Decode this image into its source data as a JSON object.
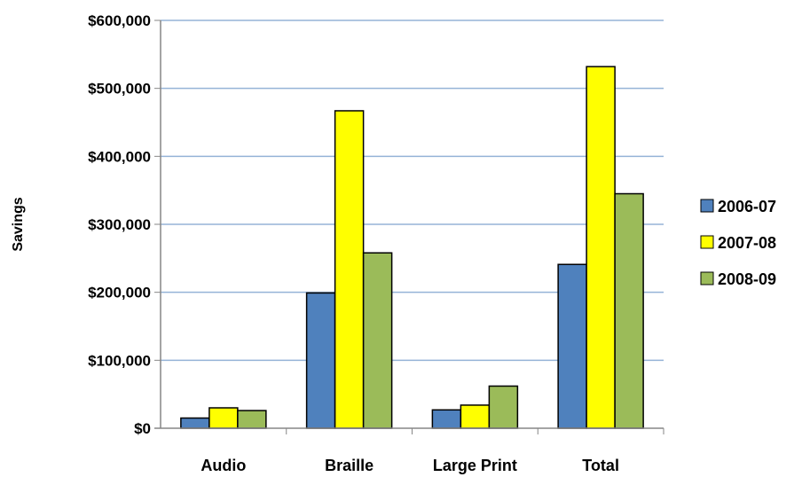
{
  "chart_data": {
    "type": "bar",
    "title": "",
    "xlabel": "",
    "ylabel": "Savings",
    "ylim": [
      0,
      600000
    ],
    "yticks": [
      0,
      100000,
      200000,
      300000,
      400000,
      500000,
      600000
    ],
    "ytick_labels": [
      "$0",
      "$100,000",
      "$200,000",
      "$300,000",
      "$400,000",
      "$500,000",
      "$600,000"
    ],
    "categories": [
      "Audio",
      "Braille",
      "Large Print",
      "Total"
    ],
    "series": [
      {
        "name": "2006-07",
        "color": "#4f81bd",
        "values": [
          15000,
          199000,
          27000,
          241000
        ]
      },
      {
        "name": "2007-08",
        "color": "#ffff00",
        "values": [
          30000,
          467000,
          34000,
          532000
        ]
      },
      {
        "name": "2008-09",
        "color": "#9bbb59",
        "values": [
          26000,
          258000,
          62000,
          345000
        ]
      }
    ],
    "grid": true,
    "gridline_color": "#95b3d7",
    "legend_position": "right"
  }
}
